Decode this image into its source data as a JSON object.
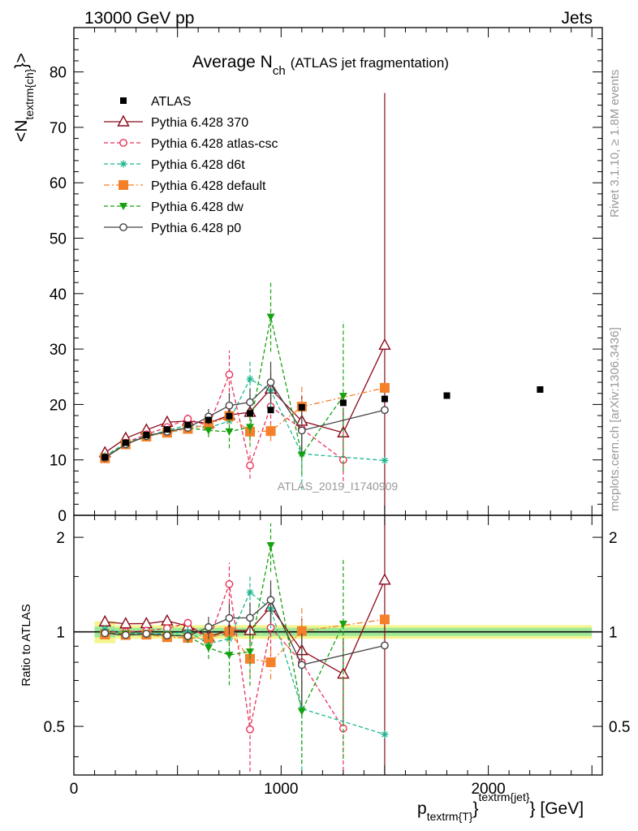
{
  "header": {
    "left": "13000 GeV pp",
    "right": "Jets"
  },
  "title": {
    "main": "Average N",
    "sub": "ch",
    "paren": "(ATLAS jet fragmentation)"
  },
  "side": {
    "rivet": "Rivet 3.1.10, ≥ 1.8M events",
    "mcplots": "mcplots.cern.ch [arXiv:1306.3436]"
  },
  "watermark": "ATLAS_2019_I1740909",
  "ylabel_top": {
    "main": "<N",
    "sub": "textrm{ch}",
    "end": "}>"
  },
  "ylabel_bottom": "Ratio to ATLAS",
  "xlabel": {
    "main": "p",
    "sub": "textrm{T}",
    "mid": "}",
    "sup": "textrm{jet}",
    "end": "} [GeV]"
  },
  "chart_data": {
    "type": "line",
    "xlim": [
      0,
      2550
    ],
    "ylim_top": [
      0,
      88
    ],
    "ylim_ratio": [
      0.35,
      2.35
    ],
    "ratio_scale": "log",
    "xticks": [
      0,
      1000,
      2000
    ],
    "xtick_labels": [
      "0",
      "1000",
      "2000"
    ],
    "yticks_top": [
      0,
      10,
      20,
      30,
      40,
      50,
      60,
      70,
      80
    ],
    "ytick_labels_top": [
      "0",
      "10",
      "20",
      "30",
      "40",
      "50",
      "60",
      "70",
      "80"
    ],
    "yticks_ratio": [
      0.5,
      1,
      2
    ],
    "ytick_labels_ratio": [
      "0.5",
      "1",
      "2"
    ],
    "legend_position": "top-left",
    "reference": {
      "name": "ATLAS",
      "color": "#000000",
      "x": [
        150,
        250,
        350,
        450,
        550,
        650,
        750,
        850,
        950,
        1100,
        1300,
        1500,
        1800,
        2250
      ],
      "y": [
        10.5,
        13.1,
        14.5,
        15.5,
        16.3,
        17.2,
        17.9,
        18.4,
        19.0,
        19.5,
        20.3,
        21.0,
        21.6,
        22.7
      ],
      "band_width": [
        100,
        100,
        100,
        100,
        100,
        100,
        100,
        100,
        100,
        200,
        200,
        200,
        400,
        500
      ],
      "band_inner": [
        0.04,
        0.03,
        0.03,
        0.03,
        0.03,
        0.03,
        0.03,
        0.03,
        0.03,
        0.03,
        0.03,
        0.03,
        0.03,
        0.03
      ],
      "band_outer": [
        0.08,
        0.05,
        0.05,
        0.05,
        0.05,
        0.05,
        0.05,
        0.05,
        0.05,
        0.05,
        0.05,
        0.05,
        0.05,
        0.05
      ]
    },
    "series": [
      {
        "name": "Pythia 6.428 370",
        "color": "#8b0a1a",
        "dash": "",
        "marker": "triangle-open",
        "x": [
          150,
          250,
          350,
          450,
          550,
          650,
          750,
          850,
          950,
          1100,
          1300,
          1500
        ],
        "y": [
          11.3,
          13.9,
          15.4,
          16.8,
          17.0,
          16.6,
          18.1,
          18.6,
          22.8,
          17.0,
          14.9,
          30.7
        ],
        "err": [
          0.3,
          0.3,
          0.3,
          0.4,
          0.6,
          0.8,
          1.2,
          1.6,
          3.0,
          4.5,
          4.5,
          45.5
        ]
      },
      {
        "name": "Pythia 6.428 atlas-csc",
        "color": "#e8325a",
        "dash": "5,3",
        "marker": "circle-open",
        "x": [
          150,
          250,
          350,
          450,
          550,
          650,
          750,
          850,
          950,
          1100,
          1300
        ],
        "y": [
          10.5,
          13.1,
          14.6,
          15.9,
          17.4,
          16.1,
          25.4,
          9.0,
          19.6,
          15.6,
          10.0
        ],
        "err": [
          0.3,
          0.3,
          0.3,
          0.4,
          0.8,
          1.0,
          4.3,
          2.4,
          4.5,
          5.0,
          5.0
        ]
      },
      {
        "name": "Pythia 6.428 d6t",
        "color": "#1fb58f",
        "dash": "5,3",
        "marker": "asterisk",
        "x": [
          150,
          250,
          350,
          450,
          550,
          650,
          750,
          850,
          950,
          1100,
          1500
        ],
        "y": [
          10.7,
          13.0,
          14.3,
          15.3,
          16.3,
          15.8,
          17.0,
          24.6,
          22.5,
          11.1,
          9.9
        ],
        "err": [
          0.3,
          0.3,
          0.3,
          0.4,
          0.6,
          0.9,
          1.5,
          3.5,
          3.0,
          6.5,
          0.3
        ]
      },
      {
        "name": "Pythia 6.428 default",
        "color": "#f5802a",
        "dash": "7,3,2,3",
        "marker": "square",
        "x": [
          150,
          250,
          350,
          450,
          550,
          650,
          750,
          850,
          950,
          1100,
          1500
        ],
        "y": [
          10.3,
          12.8,
          14.2,
          14.9,
          15.6,
          16.4,
          17.9,
          15.1,
          15.2,
          19.6,
          23.0
        ],
        "err": [
          0.3,
          0.3,
          0.3,
          0.4,
          0.5,
          0.8,
          1.5,
          1.8,
          1.8,
          4.0,
          0.3
        ]
      },
      {
        "name": "Pythia 6.428 dw",
        "color": "#16a10e",
        "dash": "5,3",
        "marker": "triangle-down",
        "x": [
          150,
          250,
          350,
          450,
          550,
          650,
          750,
          850,
          950,
          1100,
          1300
        ],
        "y": [
          10.4,
          12.9,
          14.2,
          15.2,
          15.8,
          15.3,
          15.1,
          15.9,
          35.8,
          10.9,
          21.5
        ],
        "err": [
          0.3,
          0.3,
          0.3,
          0.4,
          0.8,
          1.2,
          3.0,
          3.5,
          6.3,
          3.5,
          13.5
        ]
      },
      {
        "name": "Pythia 6.428 p0",
        "color": "#444444",
        "dash": "",
        "marker": "circle-open",
        "x": [
          150,
          250,
          350,
          450,
          550,
          650,
          750,
          850,
          950,
          1100,
          1500
        ],
        "y": [
          10.4,
          12.8,
          14.3,
          15.1,
          15.8,
          17.8,
          19.8,
          20.4,
          24.0,
          15.3,
          19.0
        ],
        "err": [
          0.3,
          0.3,
          0.3,
          0.4,
          0.6,
          1.4,
          2.3,
          2.4,
          3.7,
          4.0,
          0.3
        ]
      }
    ]
  }
}
